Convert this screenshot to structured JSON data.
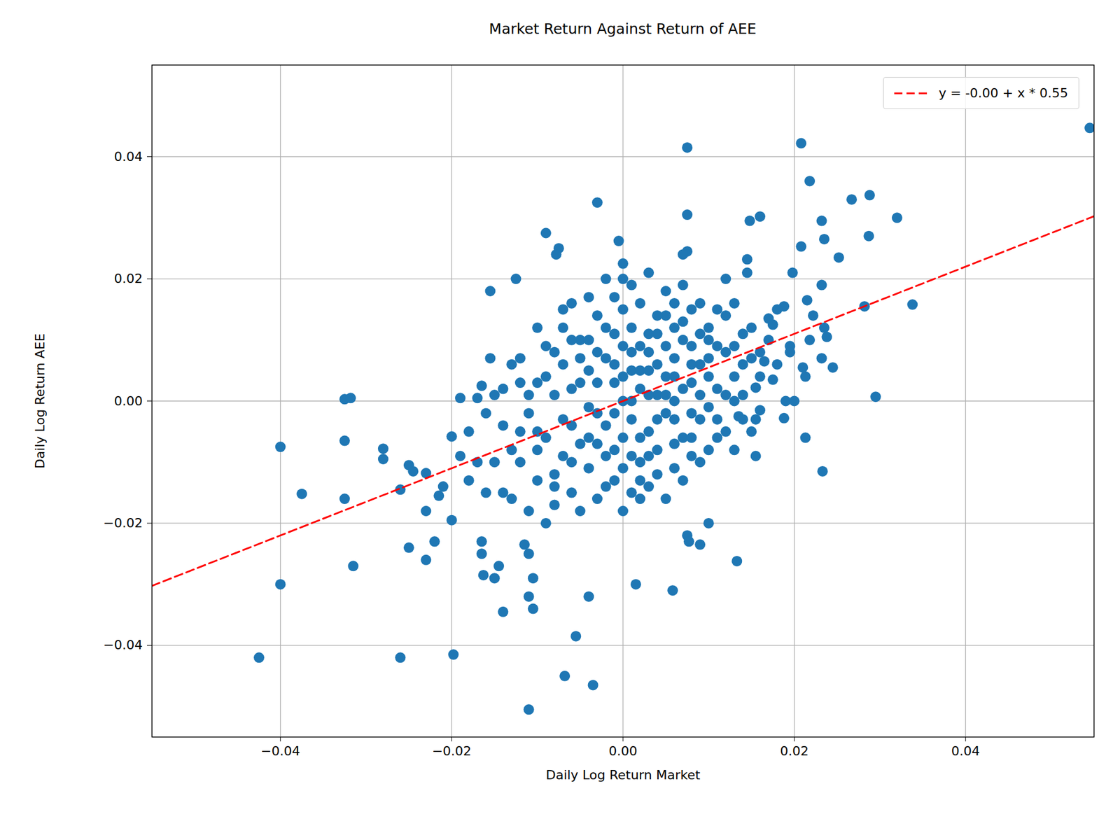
{
  "chart_data": {
    "type": "scatter",
    "title": "Market Return Against Return of AEE",
    "x_label": "Daily Log Return Market",
    "y_label": "Daily Log Return AEE",
    "color": "#1f77b4",
    "marker": "circle",
    "grid": true,
    "legend": "upper right",
    "xlim": [
      -0.055,
      0.055
    ],
    "ylim": [
      -0.055,
      0.055
    ],
    "xticks": [
      {
        "value": -0.04,
        "label": "−0.04"
      },
      {
        "value": -0.02,
        "label": "−0.02"
      },
      {
        "value": 0,
        "label": "0.00"
      },
      {
        "value": 0.02,
        "label": "0.02"
      },
      {
        "value": 0.04,
        "label": "0.04"
      }
    ],
    "yticks": [
      {
        "value": -0.04,
        "label": "−0.04"
      },
      {
        "value": -0.02,
        "label": "−0.02"
      },
      {
        "value": 0,
        "label": "0.00"
      },
      {
        "value": 0.02,
        "label": "0.02"
      },
      {
        "value": 0.04,
        "label": "0.04"
      }
    ],
    "regression": {
      "name": "y = -0.00 + x * 0.55",
      "intercept": 0,
      "slope": 0.55,
      "color": "#ff0000",
      "line_style": "dashed"
    },
    "points": [
      [
        -0.0425,
        -0.042
      ],
      [
        -0.04,
        -0.0075
      ],
      [
        -0.04,
        -0.03
      ],
      [
        -0.0375,
        -0.0152
      ],
      [
        -0.0325,
        0.0003
      ],
      [
        -0.0318,
        0.0005
      ],
      [
        -0.0325,
        -0.0065
      ],
      [
        -0.0325,
        -0.016
      ],
      [
        -0.0315,
        -0.027
      ],
      [
        -0.028,
        -0.0078
      ],
      [
        -0.028,
        -0.0095
      ],
      [
        -0.026,
        -0.042
      ],
      [
        -0.026,
        -0.0145
      ],
      [
        -0.025,
        -0.0105
      ],
      [
        -0.025,
        -0.024
      ],
      [
        -0.0245,
        -0.0115
      ],
      [
        -0.023,
        -0.0118
      ],
      [
        -0.023,
        -0.026
      ],
      [
        -0.023,
        -0.018
      ],
      [
        -0.022,
        -0.023
      ],
      [
        -0.0215,
        -0.0155
      ],
      [
        -0.021,
        -0.014
      ],
      [
        -0.02,
        -0.0058
      ],
      [
        -0.02,
        -0.0195
      ],
      [
        -0.0198,
        -0.0415
      ],
      [
        -0.019,
        -0.009
      ],
      [
        -0.019,
        0.0005
      ],
      [
        -0.017,
        0.0005
      ],
      [
        -0.0165,
        0.0025
      ],
      [
        -0.0155,
        0.018
      ],
      [
        -0.0155,
        0.007
      ],
      [
        -0.0165,
        -0.023
      ],
      [
        -0.0165,
        -0.025
      ],
      [
        -0.0163,
        -0.0285
      ],
      [
        -0.015,
        -0.029
      ],
      [
        -0.0145,
        -0.027
      ],
      [
        -0.014,
        -0.0345
      ],
      [
        -0.0125,
        0.02
      ],
      [
        -0.011,
        -0.0505
      ],
      [
        -0.011,
        -0.032
      ],
      [
        -0.0105,
        -0.034
      ],
      [
        -0.0105,
        -0.029
      ],
      [
        -0.011,
        -0.025
      ],
      [
        -0.0115,
        -0.0235
      ],
      [
        -0.009,
        0.0275
      ],
      [
        -0.0075,
        0.025
      ],
      [
        -0.0078,
        0.024
      ],
      [
        -0.0068,
        -0.045
      ],
      [
        -0.0055,
        -0.0385
      ],
      [
        -0.0035,
        -0.0465
      ],
      [
        -0.004,
        -0.032
      ],
      [
        -0.003,
        0.0325
      ],
      [
        -0.0005,
        0.0262
      ],
      [
        0.0,
        0.0225
      ],
      [
        0.0075,
        0.0415
      ],
      [
        0.0075,
        0.0305
      ],
      [
        0.0075,
        0.0245
      ],
      [
        0.007,
        0.024
      ],
      [
        0.0015,
        -0.03
      ],
      [
        0.0058,
        -0.031
      ],
      [
        0.0075,
        -0.022
      ],
      [
        0.0077,
        -0.023
      ],
      [
        0.009,
        -0.0235
      ],
      [
        0.01,
        -0.02
      ],
      [
        0.0133,
        -0.0262
      ],
      [
        0.0155,
        -0.009
      ],
      [
        0.0148,
        0.0295
      ],
      [
        0.016,
        0.0302
      ],
      [
        0.0145,
        0.0232
      ],
      [
        0.0145,
        0.021
      ],
      [
        0.0198,
        0.021
      ],
      [
        0.0208,
        0.0422
      ],
      [
        0.0218,
        0.036
      ],
      [
        0.0208,
        0.0253
      ],
      [
        0.0232,
        0.0295
      ],
      [
        0.0235,
        0.0265
      ],
      [
        0.0252,
        0.0235
      ],
      [
        0.0267,
        0.033
      ],
      [
        0.0288,
        0.0337
      ],
      [
        0.0287,
        0.027
      ],
      [
        0.032,
        0.03
      ],
      [
        0.0338,
        0.0158
      ],
      [
        0.0282,
        0.0155
      ],
      [
        0.0295,
        0.0007
      ],
      [
        0.0233,
        -0.0115
      ],
      [
        0.0213,
        -0.006
      ],
      [
        0.0232,
        0.019
      ],
      [
        0.0215,
        0.0165
      ],
      [
        0.0222,
        0.014
      ],
      [
        0.0235,
        0.012
      ],
      [
        0.0238,
        0.0105
      ],
      [
        0.0218,
        0.01
      ],
      [
        0.0245,
        0.0055
      ],
      [
        0.0232,
        0.007
      ],
      [
        0.021,
        0.0055
      ],
      [
        0.0213,
        0.004
      ],
      [
        0.0195,
        0.009
      ],
      [
        0.0195,
        0.008
      ],
      [
        0.0188,
        0.0155
      ],
      [
        0.018,
        0.015
      ],
      [
        0.0175,
        0.0125
      ],
      [
        0.017,
        0.0135
      ],
      [
        0.019,
        0.0
      ],
      [
        0.02,
        0.0
      ],
      [
        0.0188,
        -0.0028
      ],
      [
        0.0175,
        0.0035
      ],
      [
        0.0165,
        0.0065
      ],
      [
        0.016,
        -0.0015
      ],
      [
        0.0155,
        -0.003
      ],
      [
        0.0155,
        0.0022
      ],
      [
        0.0135,
        -0.0025
      ],
      [
        0.0545,
        0.0447
      ],
      [
        -0.012,
        -0.005
      ],
      [
        -0.011,
        0.001
      ],
      [
        -0.01,
        -0.008
      ],
      [
        -0.009,
        0.004
      ],
      [
        -0.008,
        -0.012
      ],
      [
        -0.008,
        0.008
      ],
      [
        -0.007,
        -0.003
      ],
      [
        -0.007,
        0.012
      ],
      [
        -0.006,
        -0.015
      ],
      [
        -0.006,
        0.002
      ],
      [
        -0.005,
        -0.007
      ],
      [
        -0.005,
        0.01
      ],
      [
        -0.004,
        0.005
      ],
      [
        -0.004,
        -0.011
      ],
      [
        -0.003,
        -0.002
      ],
      [
        -0.003,
        0.014
      ],
      [
        -0.002,
        -0.009
      ],
      [
        -0.002,
        0.007
      ],
      [
        -0.001,
        0.003
      ],
      [
        -0.001,
        -0.013
      ],
      [
        0.0,
        0.0
      ],
      [
        0.0,
        0.009
      ],
      [
        0.0,
        -0.006
      ],
      [
        0.001,
        0.012
      ],
      [
        0.001,
        -0.003
      ],
      [
        0.001,
        0.005
      ],
      [
        0.002,
        -0.01
      ],
      [
        0.002,
        0.002
      ],
      [
        0.002,
        0.016
      ],
      [
        0.003,
        -0.005
      ],
      [
        0.003,
        0.008
      ],
      [
        0.003,
        -0.014
      ],
      [
        0.004,
        0.001
      ],
      [
        0.004,
        0.011
      ],
      [
        0.004,
        -0.008
      ],
      [
        0.005,
        0.004
      ],
      [
        0.005,
        -0.002
      ],
      [
        0.005,
        0.014
      ],
      [
        0.006,
        -0.011
      ],
      [
        0.006,
        0.007
      ],
      [
        0.006,
        0.0
      ],
      [
        0.007,
        0.01
      ],
      [
        0.007,
        -0.006
      ],
      [
        0.008,
        0.003
      ],
      [
        0.008,
        0.015
      ],
      [
        0.008,
        -0.009
      ],
      [
        0.009,
        0.006
      ],
      [
        0.009,
        -0.003
      ],
      [
        0.01,
        0.012
      ],
      [
        0.01,
        -0.008
      ],
      [
        0.011,
        0.002
      ],
      [
        0.011,
        0.009
      ],
      [
        0.012,
        -0.005
      ],
      [
        0.012,
        0.014
      ],
      [
        0.013,
        0.004
      ],
      [
        0.013,
        -0.008
      ],
      [
        0.014,
        0.011
      ],
      [
        0.014,
        0.001
      ],
      [
        0.015,
        0.007
      ],
      [
        0.015,
        -0.005
      ],
      [
        -0.015,
        -0.01
      ],
      [
        -0.014,
        -0.004
      ],
      [
        -0.014,
        0.002
      ],
      [
        -0.013,
        -0.016
      ],
      [
        -0.013,
        0.006
      ],
      [
        -0.012,
        -0.01
      ],
      [
        -0.012,
        0.007
      ],
      [
        -0.011,
        -0.018
      ],
      [
        -0.011,
        -0.002
      ],
      [
        -0.01,
        0.012
      ],
      [
        -0.01,
        -0.013
      ],
      [
        -0.009,
        -0.02
      ],
      [
        -0.009,
        -0.006
      ],
      [
        -0.008,
        0.001
      ],
      [
        -0.008,
        -0.017
      ],
      [
        -0.007,
        0.006
      ],
      [
        -0.007,
        -0.009
      ],
      [
        -0.006,
        0.016
      ],
      [
        -0.006,
        -0.004
      ],
      [
        -0.005,
        0.003
      ],
      [
        -0.005,
        -0.018
      ],
      [
        -0.004,
        0.017
      ],
      [
        -0.004,
        -0.001
      ],
      [
        -0.003,
        0.008
      ],
      [
        -0.003,
        -0.016
      ],
      [
        -0.002,
        0.02
      ],
      [
        -0.002,
        -0.004
      ],
      [
        -0.001,
        0.011
      ],
      [
        -0.001,
        -0.008
      ],
      [
        0.0,
        0.015
      ],
      [
        0.0,
        -0.018
      ],
      [
        0.001,
        -0.009
      ],
      [
        0.001,
        0.019
      ],
      [
        0.002,
        -0.016
      ],
      [
        0.002,
        0.009
      ],
      [
        0.003,
        0.021
      ],
      [
        0.003,
        0.001
      ],
      [
        0.004,
        -0.012
      ],
      [
        0.004,
        0.006
      ],
      [
        0.005,
        0.018
      ],
      [
        0.005,
        -0.016
      ],
      [
        0.006,
        0.012
      ],
      [
        0.006,
        -0.007
      ],
      [
        0.007,
        0.019
      ],
      [
        0.007,
        -0.013
      ],
      [
        0.008,
        0.009
      ],
      [
        0.008,
        -0.002
      ],
      [
        0.009,
        0.016
      ],
      [
        0.009,
        -0.01
      ],
      [
        0.01,
        0.004
      ],
      [
        0.01,
        -0.001
      ],
      [
        0.011,
        0.015
      ],
      [
        0.011,
        -0.006
      ],
      [
        0.012,
        0.008
      ],
      [
        0.012,
        0.02
      ],
      [
        0.013,
        0.016
      ],
      [
        0.013,
        0.0
      ],
      [
        0.014,
        0.006
      ],
      [
        0.015,
        0.012
      ],
      [
        0.016,
        0.008
      ],
      [
        -0.018,
        -0.013
      ],
      [
        -0.018,
        -0.005
      ],
      [
        -0.017,
        -0.01
      ],
      [
        -0.016,
        -0.002
      ],
      [
        -0.016,
        -0.015
      ],
      [
        -0.015,
        0.001
      ],
      [
        -0.014,
        -0.015
      ],
      [
        -0.013,
        -0.008
      ],
      [
        -0.012,
        0.003
      ],
      [
        -0.01,
        -0.005
      ],
      [
        -0.009,
        0.009
      ],
      [
        -0.007,
        0.015
      ],
      [
        -0.006,
        0.01
      ],
      [
        -0.005,
        0.007
      ],
      [
        -0.004,
        -0.006
      ],
      [
        -0.003,
        0.003
      ],
      [
        -0.002,
        0.012
      ],
      [
        -0.001,
        -0.002
      ],
      [
        -0.001,
        0.006
      ],
      [
        0.0,
        0.004
      ],
      [
        0.0,
        -0.011
      ],
      [
        0.001,
        0.008
      ],
      [
        0.001,
        0.0
      ],
      [
        0.002,
        0.005
      ],
      [
        0.002,
        -0.006
      ],
      [
        0.003,
        0.011
      ],
      [
        0.003,
        -0.009
      ],
      [
        0.004,
        0.014
      ],
      [
        0.004,
        -0.003
      ],
      [
        0.005,
        0.009
      ],
      [
        0.005,
        0.001
      ],
      [
        0.006,
        0.004
      ],
      [
        0.006,
        -0.003
      ],
      [
        0.007,
        0.002
      ],
      [
        0.007,
        0.013
      ],
      [
        0.008,
        -0.006
      ],
      [
        0.008,
        0.006
      ],
      [
        0.009,
        0.001
      ],
      [
        0.009,
        0.011
      ],
      [
        0.01,
        0.007
      ],
      [
        0.011,
        -0.003
      ],
      [
        0.012,
        0.001
      ],
      [
        0.013,
        0.009
      ],
      [
        0.014,
        -0.003
      ],
      [
        0.016,
        0.004
      ],
      [
        0.017,
        0.01
      ],
      [
        0.018,
        0.006
      ],
      [
        -0.001,
        0.017
      ],
      [
        0.0,
        0.02
      ],
      [
        0.002,
        -0.013
      ],
      [
        -0.002,
        -0.014
      ],
      [
        -0.008,
        -0.014
      ],
      [
        -0.01,
        0.003
      ],
      [
        -0.006,
        -0.01
      ],
      [
        0.006,
        0.016
      ],
      [
        0.01,
        0.01
      ],
      [
        0.003,
        0.005
      ],
      [
        -0.003,
        -0.007
      ],
      [
        0.001,
        -0.015
      ],
      [
        -0.004,
        0.01
      ]
    ]
  }
}
